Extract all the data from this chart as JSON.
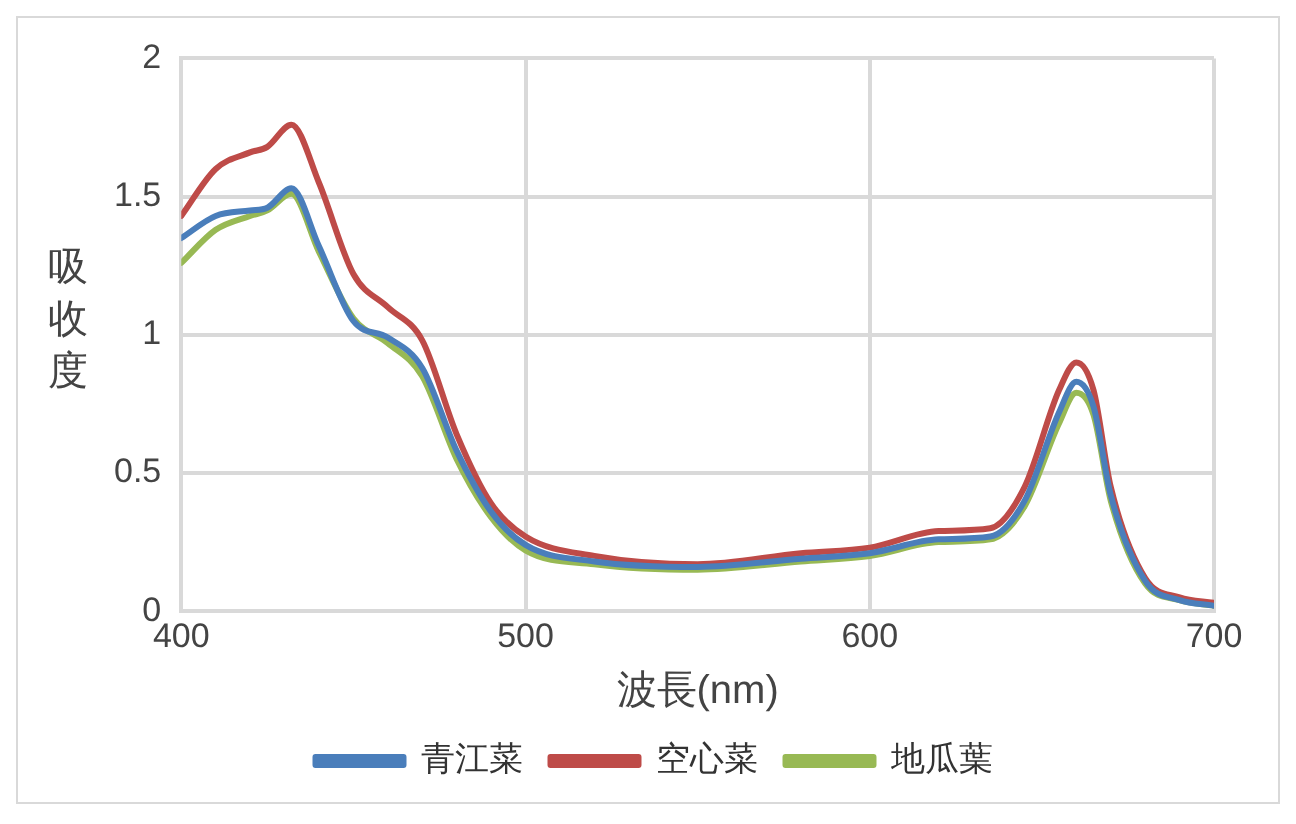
{
  "chart_data": {
    "type": "line",
    "xlabel": "波長(nm)",
    "ylabel": "吸收度",
    "x": [
      400,
      410,
      420,
      425,
      432,
      440,
      450,
      460,
      470,
      480,
      490,
      500,
      520,
      550,
      580,
      600,
      620,
      635,
      645,
      655,
      660,
      665,
      670,
      680,
      690,
      700
    ],
    "series": [
      {
        "name": "青江菜",
        "color": "#4a7ebb",
        "values": [
          1.35,
          1.43,
          1.45,
          1.46,
          1.53,
          1.32,
          1.05,
          0.99,
          0.88,
          0.58,
          0.36,
          0.24,
          0.18,
          0.16,
          0.19,
          0.21,
          0.26,
          0.27,
          0.4,
          0.72,
          0.83,
          0.74,
          0.42,
          0.11,
          0.04,
          0.02
        ]
      },
      {
        "name": "空心菜",
        "color": "#be4b48",
        "values": [
          1.43,
          1.6,
          1.66,
          1.68,
          1.76,
          1.55,
          1.22,
          1.1,
          0.98,
          0.64,
          0.39,
          0.27,
          0.2,
          0.17,
          0.21,
          0.23,
          0.29,
          0.3,
          0.45,
          0.8,
          0.9,
          0.8,
          0.45,
          0.12,
          0.05,
          0.03
        ]
      },
      {
        "name": "地瓜葉",
        "color": "#98b954",
        "values": [
          1.26,
          1.38,
          1.43,
          1.45,
          1.51,
          1.3,
          1.06,
          0.97,
          0.85,
          0.55,
          0.34,
          0.22,
          0.17,
          0.15,
          0.18,
          0.2,
          0.25,
          0.26,
          0.38,
          0.68,
          0.79,
          0.71,
          0.4,
          0.1,
          0.04,
          0.02
        ]
      }
    ],
    "xlim": [
      400,
      700
    ],
    "xticks": [
      400,
      500,
      600,
      700
    ],
    "ylim": [
      0,
      2
    ],
    "yticks": [
      0,
      0.5,
      1,
      1.5,
      2
    ],
    "grid": true,
    "legend": "bottom",
    "marker": "none",
    "line_style": "solid"
  }
}
